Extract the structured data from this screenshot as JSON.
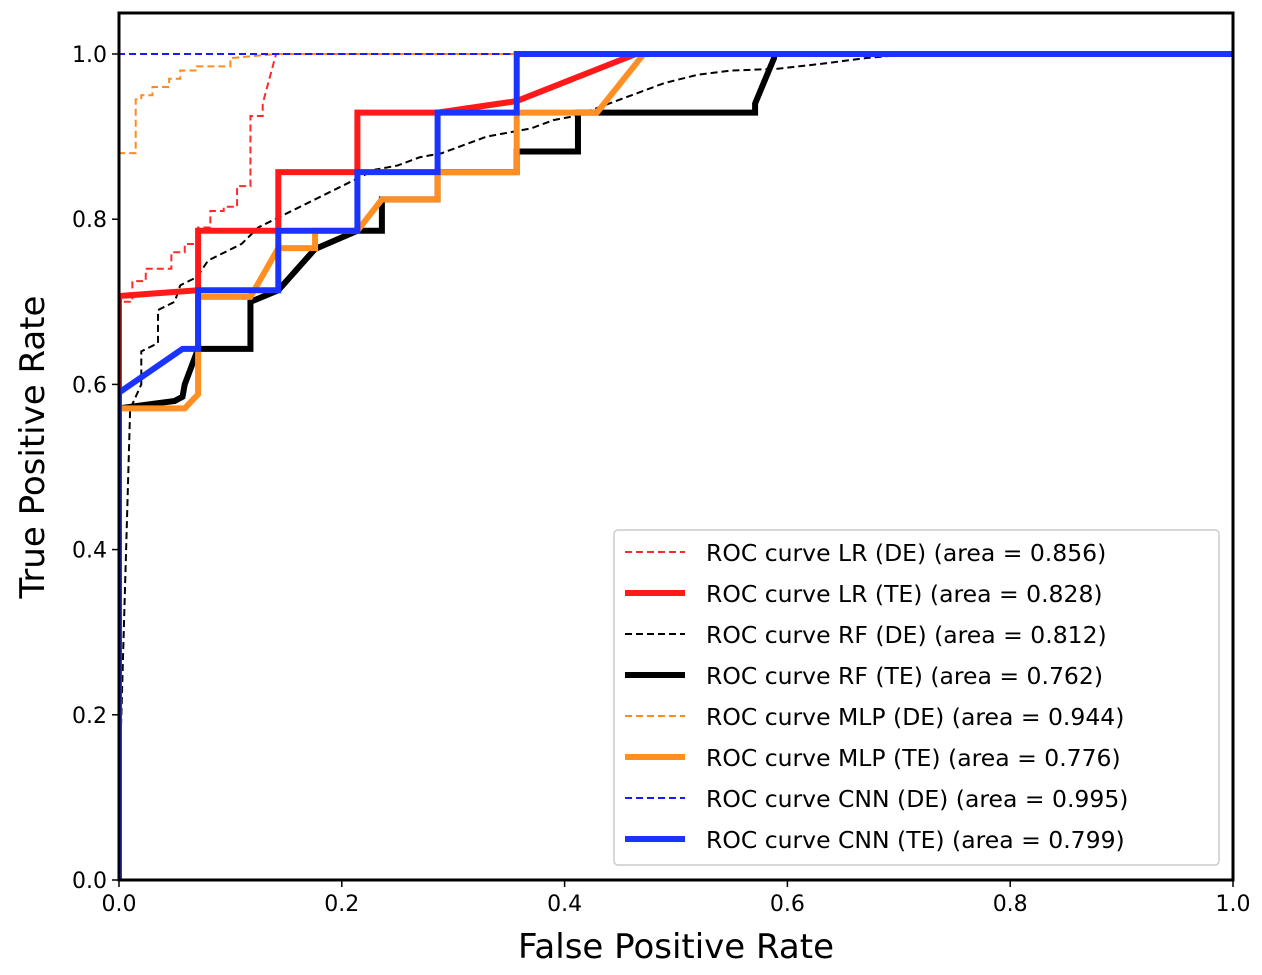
{
  "chart_data": {
    "type": "line",
    "title": "",
    "xlabel": "False Positive Rate",
    "ylabel": "True Positive Rate",
    "xlim": [
      0.0,
      1.0
    ],
    "ylim": [
      0.0,
      1.05
    ],
    "xticks": [
      "0.0",
      "0.2",
      "0.4",
      "0.6",
      "0.8",
      "1.0"
    ],
    "yticks": [
      "0.0",
      "0.2",
      "0.4",
      "0.6",
      "0.8",
      "1.0"
    ],
    "grid": false,
    "legend_position": "lower-right",
    "series": [
      {
        "name": "ROC curve LR (DE) (area = 0.856)",
        "color": "#ff2a2a",
        "style": "dashed",
        "x": [
          0.0,
          0.0,
          0.012,
          0.012,
          0.024,
          0.024,
          0.035,
          0.035,
          0.047,
          0.047,
          0.059,
          0.059,
          0.071,
          0.071,
          0.082,
          0.082,
          0.094,
          0.094,
          0.106,
          0.106,
          0.118,
          0.118,
          0.129,
          0.129,
          0.141,
          1.0
        ],
        "y": [
          0.0,
          0.7,
          0.7,
          0.725,
          0.725,
          0.74,
          0.74,
          0.74,
          0.74,
          0.76,
          0.76,
          0.77,
          0.77,
          0.79,
          0.79,
          0.81,
          0.81,
          0.815,
          0.815,
          0.84,
          0.84,
          0.925,
          0.925,
          0.94,
          1.0,
          1.0
        ]
      },
      {
        "name": "ROC curve LR (TE) (area = 0.828)",
        "color": "#ff1a1a",
        "style": "solid",
        "x": [
          0.0,
          0.0,
          0.0,
          0.071,
          0.071,
          0.143,
          0.143,
          0.214,
          0.214,
          0.286,
          0.357,
          0.464,
          1.0
        ],
        "y": [
          0.0,
          0.586,
          0.707,
          0.714,
          0.786,
          0.786,
          0.857,
          0.857,
          0.929,
          0.929,
          0.943,
          1.0,
          1.0
        ]
      },
      {
        "name": "ROC curve RF (DE) (area = 0.812)",
        "color": "#000000",
        "style": "dashed",
        "x": [
          0.0,
          0.0,
          0.01,
          0.02,
          0.02,
          0.035,
          0.035,
          0.05,
          0.055,
          0.07,
          0.08,
          0.095,
          0.11,
          0.125,
          0.14,
          0.155,
          0.17,
          0.185,
          0.2,
          0.215,
          0.23,
          0.25,
          0.27,
          0.29,
          0.31,
          0.33,
          0.35,
          0.37,
          0.39,
          0.41,
          0.43,
          0.46,
          0.49,
          0.52,
          0.55,
          0.59,
          0.63,
          0.67,
          0.71,
          1.0
        ],
        "y": [
          0.0,
          0.1,
          0.57,
          0.6,
          0.64,
          0.65,
          0.69,
          0.7,
          0.72,
          0.73,
          0.75,
          0.76,
          0.77,
          0.79,
          0.8,
          0.81,
          0.82,
          0.83,
          0.84,
          0.85,
          0.86,
          0.865,
          0.875,
          0.88,
          0.89,
          0.9,
          0.905,
          0.91,
          0.92,
          0.925,
          0.935,
          0.95,
          0.965,
          0.975,
          0.98,
          0.982,
          0.988,
          0.995,
          1.0,
          1.0
        ]
      },
      {
        "name": "ROC curve RF (TE) (area = 0.762)",
        "color": "#000000",
        "style": "solid",
        "x": [
          0.0,
          0.0,
          0.0,
          0.05,
          0.057,
          0.059,
          0.071,
          0.071,
          0.118,
          0.118,
          0.143,
          0.176,
          0.214,
          0.236,
          0.236,
          0.286,
          0.286,
          0.357,
          0.357,
          0.412,
          0.412,
          0.571,
          0.571,
          0.588,
          0.588,
          1.0
        ],
        "y": [
          0.0,
          0.57,
          0.571,
          0.58,
          0.585,
          0.6,
          0.643,
          0.643,
          0.643,
          0.7,
          0.714,
          0.764,
          0.786,
          0.786,
          0.824,
          0.824,
          0.857,
          0.857,
          0.882,
          0.882,
          0.929,
          0.929,
          0.94,
          0.995,
          1.0,
          1.0
        ]
      },
      {
        "name": "ROC curve MLP (DE) (area = 0.944)",
        "color": "#ff8c1a",
        "style": "dashed",
        "x": [
          0.0,
          0.0,
          0.0,
          0.015,
          0.015,
          0.02,
          0.02,
          0.03,
          0.03,
          0.045,
          0.045,
          0.055,
          0.055,
          0.07,
          0.07,
          0.085,
          0.1,
          0.1,
          0.141,
          1.0
        ],
        "y": [
          0.0,
          0.0,
          0.88,
          0.88,
          0.945,
          0.945,
          0.95,
          0.95,
          0.96,
          0.96,
          0.97,
          0.97,
          0.98,
          0.98,
          0.985,
          0.985,
          0.985,
          0.995,
          1.0,
          1.0
        ]
      },
      {
        "name": "ROC curve MLP (TE) (area = 0.776)",
        "color": "#ff8f22",
        "style": "solid",
        "x": [
          0.0,
          0.0,
          0.0,
          0.059,
          0.071,
          0.071,
          0.118,
          0.143,
          0.176,
          0.176,
          0.214,
          0.236,
          0.236,
          0.286,
          0.286,
          0.357,
          0.357,
          0.429,
          0.429,
          0.471,
          1.0
        ],
        "y": [
          0.0,
          0.571,
          0.571,
          0.571,
          0.588,
          0.706,
          0.706,
          0.765,
          0.765,
          0.786,
          0.786,
          0.824,
          0.824,
          0.824,
          0.857,
          0.857,
          0.929,
          0.929,
          0.929,
          1.0,
          1.0
        ]
      },
      {
        "name": "ROC curve CNN (DE) (area = 0.995)",
        "color": "#1a1aff",
        "style": "dashed",
        "x": [
          0.0,
          0.0,
          1.0
        ],
        "y": [
          0.0,
          1.0,
          1.0
        ]
      },
      {
        "name": "ROC curve CNN (TE) (area = 0.799)",
        "color": "#1a33ff",
        "style": "solid",
        "x": [
          0.0,
          0.0,
          0.0,
          0.057,
          0.071,
          0.071,
          0.143,
          0.143,
          0.214,
          0.214,
          0.286,
          0.286,
          0.357,
          0.357,
          1.0
        ],
        "y": [
          0.0,
          0.586,
          0.59,
          0.643,
          0.643,
          0.714,
          0.714,
          0.786,
          0.786,
          0.857,
          0.857,
          0.929,
          0.929,
          1.0,
          1.0
        ]
      }
    ]
  }
}
